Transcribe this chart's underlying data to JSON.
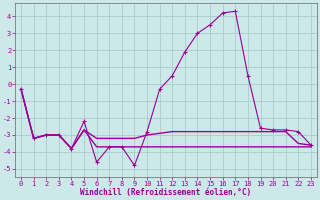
{
  "xlabel": "Windchill (Refroidissement éolien,°C)",
  "bg_color": "#cce8e8",
  "grid_color": "#aacccc",
  "line_color": "#990099",
  "spine_color": "#666666",
  "xlim": [
    -0.5,
    23.5
  ],
  "ylim": [
    -5.5,
    4.8
  ],
  "xticks": [
    0,
    1,
    2,
    3,
    4,
    5,
    6,
    7,
    8,
    9,
    10,
    11,
    12,
    13,
    14,
    15,
    16,
    17,
    18,
    19,
    20,
    21,
    22,
    23
  ],
  "yticks": [
    -5,
    -4,
    -3,
    -2,
    -1,
    0,
    1,
    2,
    3,
    4
  ],
  "line1_x": [
    0,
    1,
    2,
    3,
    4,
    5,
    6,
    7,
    8,
    9,
    10,
    11,
    12,
    13,
    14,
    15,
    16,
    17,
    18,
    19,
    20,
    21,
    22,
    23
  ],
  "line1_y": [
    -0.3,
    -3.2,
    -3.0,
    -3.0,
    -3.8,
    -2.2,
    -4.6,
    -3.7,
    -3.7,
    -4.8,
    -2.8,
    -0.3,
    0.5,
    1.9,
    3.0,
    3.5,
    4.2,
    4.3,
    0.5,
    -2.6,
    -2.7,
    -2.7,
    -2.8,
    -3.6
  ],
  "line2_x": [
    0,
    1,
    2,
    3,
    4,
    5,
    6,
    7,
    8,
    9,
    10,
    11,
    12,
    13,
    14,
    15,
    16,
    17,
    18,
    19,
    20,
    21,
    22,
    23
  ],
  "line2_y": [
    -0.3,
    -3.2,
    -3.0,
    -3.0,
    -3.8,
    -2.7,
    -3.2,
    -3.2,
    -3.2,
    -3.2,
    -3.0,
    -2.9,
    -2.8,
    -2.8,
    -2.8,
    -2.8,
    -2.8,
    -2.8,
    -2.8,
    -2.8,
    -2.8,
    -2.8,
    -3.5,
    -3.6
  ],
  "line3_x": [
    0,
    1,
    2,
    3,
    4,
    5,
    6,
    7,
    8,
    9,
    10,
    11,
    12,
    13,
    14,
    15,
    16,
    17,
    18,
    19,
    20,
    21,
    22,
    23
  ],
  "line3_y": [
    -0.3,
    -3.2,
    -3.0,
    -3.0,
    -3.8,
    -2.7,
    -3.7,
    -3.7,
    -3.7,
    -3.7,
    -3.7,
    -3.7,
    -3.7,
    -3.7,
    -3.7,
    -3.7,
    -3.7,
    -3.7,
    -3.7,
    -3.7,
    -3.7,
    -3.7,
    -3.7,
    -3.7
  ],
  "tick_fontsize": 5,
  "xlabel_fontsize": 5.5
}
